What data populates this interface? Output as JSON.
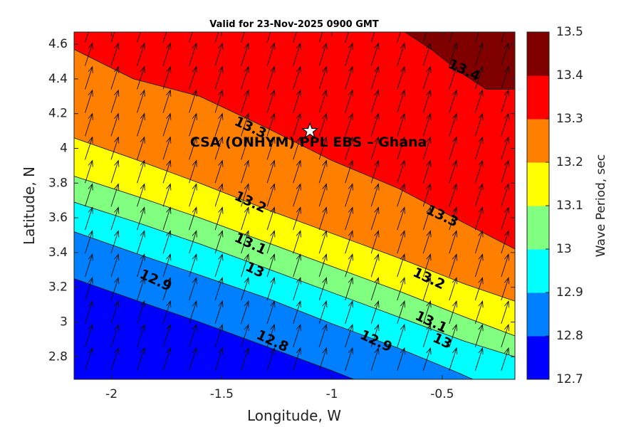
{
  "chart_data": {
    "type": "filled_contour",
    "title": "Valid for 23-Nov-2025 0900 GMT",
    "xlabel": "Longitude, W",
    "ylabel": "Latitude, N",
    "xlim": [
      -2.17,
      -0.17
    ],
    "ylim": [
      2.67,
      4.67
    ],
    "x_ticks": [
      -2,
      -1.5,
      -1,
      -0.5
    ],
    "x_tick_labels": [
      "-2",
      "-1.5",
      "-1",
      "-0.5"
    ],
    "y_ticks": [
      2.8,
      3.0,
      3.2,
      3.4,
      3.6,
      3.8,
      4.0,
      4.2,
      4.4,
      4.6
    ],
    "y_tick_labels": [
      "2.8",
      "3",
      "3.2",
      "3.4",
      "3.6",
      "3.8",
      "4",
      "4.2",
      "4.4",
      "4.6"
    ],
    "colorbar": {
      "label": "Wave Period, sec",
      "levels": [
        12.7,
        12.8,
        12.9,
        13.0,
        13.1,
        13.2,
        13.3,
        13.4,
        13.5
      ],
      "tick_labels": [
        "12.7",
        "12.8",
        "12.9",
        "13",
        "13.1",
        "13.2",
        "13.3",
        "13.4",
        "13.5"
      ],
      "colors": [
        "#0000ff",
        "#0080ff",
        "#00ffff",
        "#80ff80",
        "#ffff00",
        "#ff8000",
        "#ff0000",
        "#800000"
      ]
    },
    "contour_lines": [
      {
        "level": 12.8,
        "points": [
          [
            -2.17,
            3.25
          ],
          [
            -1.9,
            3.13
          ],
          [
            -1.6,
            3.0
          ],
          [
            -1.3,
            2.86
          ],
          [
            -1.0,
            2.72
          ],
          [
            -0.9,
            2.67
          ]
        ]
      },
      {
        "level": 12.9,
        "points": [
          [
            -2.17,
            3.52
          ],
          [
            -1.9,
            3.4
          ],
          [
            -1.6,
            3.27
          ],
          [
            -1.3,
            3.14
          ],
          [
            -1.0,
            2.99
          ],
          [
            -0.7,
            2.85
          ],
          [
            -0.45,
            2.72
          ],
          [
            -0.36,
            2.67
          ]
        ]
      },
      {
        "level": 13.0,
        "points": [
          [
            -2.17,
            3.69
          ],
          [
            -1.9,
            3.58
          ],
          [
            -1.6,
            3.45
          ],
          [
            -1.3,
            3.31
          ],
          [
            -1.0,
            3.17
          ],
          [
            -0.7,
            3.03
          ],
          [
            -0.4,
            2.89
          ],
          [
            -0.17,
            2.8
          ]
        ]
      },
      {
        "level": 13.1,
        "points": [
          [
            -2.17,
            3.84
          ],
          [
            -1.9,
            3.73
          ],
          [
            -1.6,
            3.6
          ],
          [
            -1.3,
            3.46
          ],
          [
            -1.0,
            3.32
          ],
          [
            -0.7,
            3.18
          ],
          [
            -0.4,
            3.03
          ],
          [
            -0.17,
            2.92
          ]
        ]
      },
      {
        "level": 13.2,
        "points": [
          [
            -2.17,
            4.06
          ],
          [
            -1.9,
            3.94
          ],
          [
            -1.6,
            3.8
          ],
          [
            -1.3,
            3.65
          ],
          [
            -1.0,
            3.51
          ],
          [
            -0.7,
            3.37
          ],
          [
            -0.4,
            3.22
          ],
          [
            -0.17,
            3.12
          ]
        ]
      },
      {
        "level": 13.3,
        "points": [
          [
            -2.17,
            4.57
          ],
          [
            -1.9,
            4.4
          ],
          [
            -1.6,
            4.3
          ],
          [
            -1.3,
            4.12
          ],
          [
            -1.0,
            3.93
          ],
          [
            -0.7,
            3.77
          ],
          [
            -0.4,
            3.57
          ],
          [
            -0.17,
            3.42
          ]
        ]
      },
      {
        "level": 13.4,
        "points": [
          [
            -0.67,
            4.67
          ],
          [
            -0.55,
            4.57
          ],
          [
            -0.42,
            4.44
          ],
          [
            -0.3,
            4.34
          ],
          [
            -0.17,
            4.34
          ]
        ]
      }
    ],
    "contour_labels": [
      {
        "text": "13.4",
        "x": -0.4,
        "y": 4.45,
        "angle": 25
      },
      {
        "text": "13.3",
        "x": -1.37,
        "y": 4.12,
        "angle": 25
      },
      {
        "text": "13.3",
        "x": -0.5,
        "y": 3.61,
        "angle": 25
      },
      {
        "text": "13.2",
        "x": -1.37,
        "y": 3.69,
        "angle": 25
      },
      {
        "text": "13.2",
        "x": -0.56,
        "y": 3.25,
        "angle": 25
      },
      {
        "text": "13.1",
        "x": -1.37,
        "y": 3.45,
        "angle": 25
      },
      {
        "text": "13.1",
        "x": -0.55,
        "y": 3.0,
        "angle": 25
      },
      {
        "text": "13",
        "x": -1.35,
        "y": 3.3,
        "angle": 25
      },
      {
        "text": "13",
        "x": -0.5,
        "y": 2.89,
        "angle": 25
      },
      {
        "text": "12.9",
        "x": -1.8,
        "y": 3.24,
        "angle": 25
      },
      {
        "text": "12.9",
        "x": -0.8,
        "y": 2.89,
        "angle": 25
      },
      {
        "text": "12.8",
        "x": -1.27,
        "y": 2.89,
        "angle": 25
      }
    ],
    "annotation": {
      "text": "CSA (ONHYM) PPL EBS  – Ghana",
      "x": -1.1,
      "y": 4.1,
      "marker": "star"
    },
    "vector_field": {
      "x_start": -2.12,
      "x_step": 0.118,
      "y_start": 2.72,
      "y_step": 0.135,
      "u": 0.033,
      "v": 0.13,
      "scale_note": "arrows point north-northeast, uniform direction"
    }
  }
}
